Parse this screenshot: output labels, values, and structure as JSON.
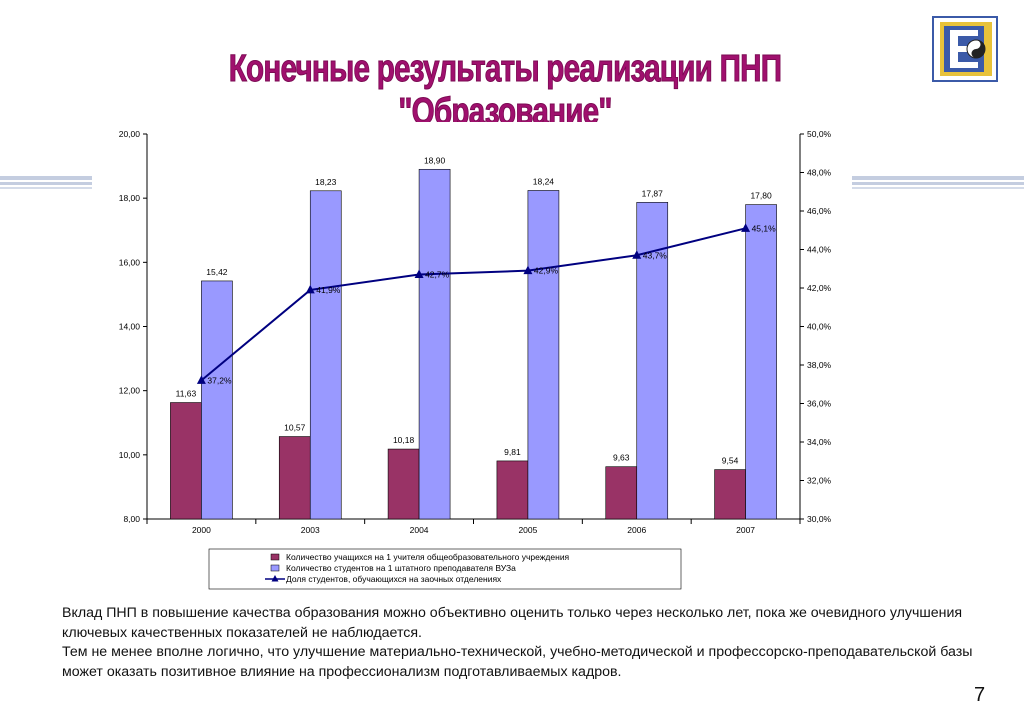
{
  "slide": {
    "title": "Конечные результаты реализации ПНП \"Образование\"",
    "page_number": "7",
    "paragraphs": [
      "Вклад ПНП в повышение качества образования можно объективно оценить только через несколько лет, пока же очевидного улучшения ключевых качественных показателей не наблюдается.",
      "Тем не менее вполне логично, что улучшение материально-технической, учебно-методической и профессорско-преподавательской базы может оказать позитивное влияние на профессионализм подготавливаемых кадров."
    ]
  },
  "colors": {
    "title": "#a0106e",
    "bar_series_1": "#993366",
    "bar_series_2": "#9999ff",
    "line_series": "#000080",
    "stripe": "#b8c2d8"
  },
  "chart_data": {
    "type": "bar",
    "categories": [
      "2000",
      "2003",
      "2004",
      "2005",
      "2006",
      "2007"
    ],
    "series": [
      {
        "name": "Количество учащихся на 1 учителя общеобразовательного учреждения",
        "type": "bar",
        "axis": "left",
        "values": [
          11.63,
          10.57,
          10.18,
          9.81,
          9.63,
          9.54
        ],
        "labels": [
          "11,63",
          "10,57",
          "10,18",
          "9,81",
          "9,63",
          "9,54"
        ]
      },
      {
        "name": "Количество студентов на 1 штатного преподавателя ВУЗа",
        "type": "bar",
        "axis": "left",
        "values": [
          15.42,
          18.23,
          18.9,
          18.24,
          17.87,
          17.8
        ],
        "labels": [
          "15,42",
          "18,23",
          "18,90",
          "18,24",
          "17,87",
          "17,80"
        ]
      },
      {
        "name": "Доля студентов, обучающихся на заочных отделениях",
        "type": "line",
        "axis": "right",
        "values": [
          37.2,
          41.9,
          42.7,
          42.9,
          43.7,
          45.1
        ],
        "labels": [
          "37,2%",
          "41,9%",
          "42,7%",
          "42,9%",
          "43,7%",
          "45,1%"
        ]
      }
    ],
    "y_left": {
      "ylim": [
        8,
        20
      ],
      "ticks": [
        "8,00",
        "10,00",
        "12,00",
        "14,00",
        "16,00",
        "18,00",
        "20,00"
      ]
    },
    "y_right": {
      "ylim": [
        30,
        50
      ],
      "ticks": [
        "30,0%",
        "32,0%",
        "34,0%",
        "36,0%",
        "38,0%",
        "40,0%",
        "42,0%",
        "44,0%",
        "46,0%",
        "48,0%",
        "50,0%"
      ]
    },
    "legend_position": "bottom",
    "grid": false
  }
}
